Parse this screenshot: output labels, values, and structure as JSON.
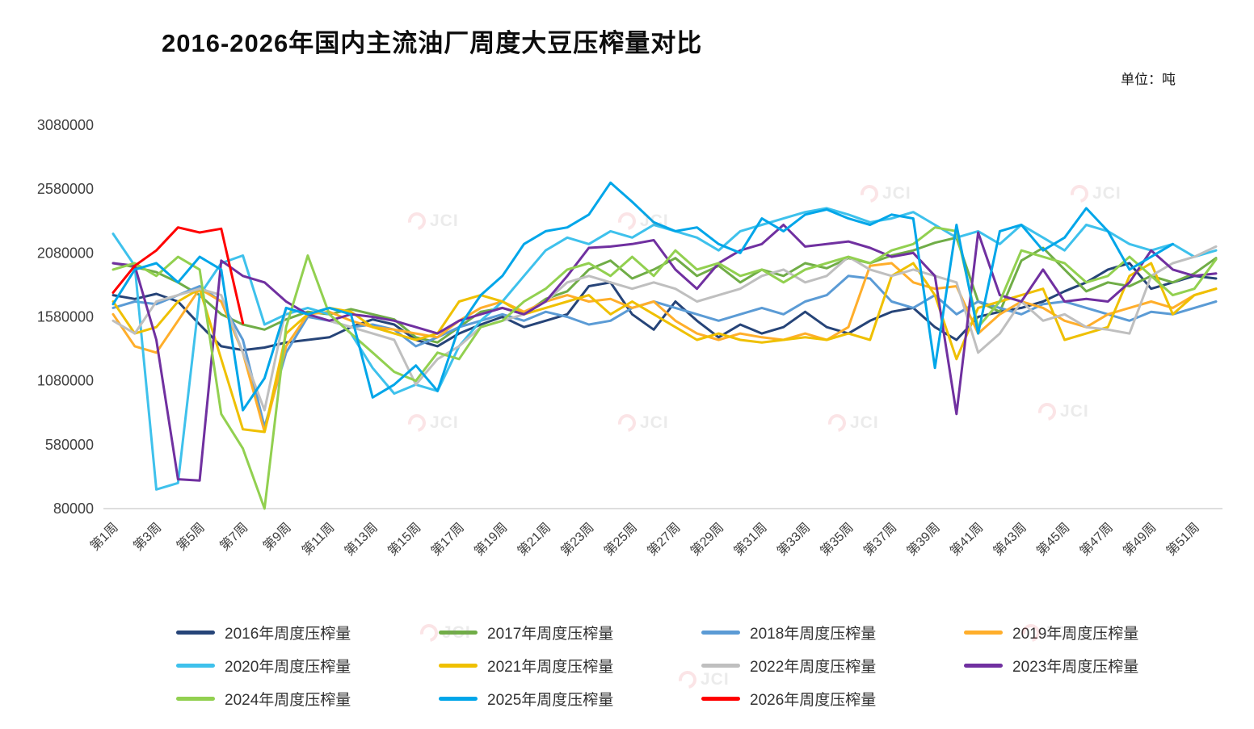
{
  "watermark": "JCI",
  "chart_data": {
    "type": "line",
    "title": "2016-2026年国内主流油厂周度大豆压榨量对比",
    "unit": "单位：吨",
    "xlabel": "",
    "ylabel": "",
    "weeks": 52,
    "x_tick_labels": [
      "第1周",
      "第3周",
      "第5周",
      "第7周",
      "第9周",
      "第11周",
      "第13周",
      "第15周",
      "第17周",
      "第19周",
      "第21周",
      "第23周",
      "第25周",
      "第27周",
      "第29周",
      "第31周",
      "第33周",
      "第35周",
      "第37周",
      "第39周",
      "第41周",
      "第43周",
      "第45周",
      "第47周",
      "第49周",
      "第51周"
    ],
    "ylim": [
      80000,
      3080000
    ],
    "y_ticks": [
      3080000,
      2580000,
      2080000,
      1580000,
      1080000,
      580000,
      80000
    ],
    "y_tick_labels": [
      "3080000",
      "2580000",
      "2080000",
      "1580000",
      "1080000",
      "580000",
      "80000"
    ],
    "grid": false,
    "legend_position": "bottom",
    "series": [
      {
        "name": "2016年周度压榨量",
        "color": "#264478",
        "values": [
          1750000,
          1720000,
          1760000,
          1700000,
          1520000,
          1350000,
          1320000,
          1340000,
          1380000,
          1400000,
          1420000,
          1500000,
          1560000,
          1520000,
          1400000,
          1350000,
          1450000,
          1520000,
          1580000,
          1500000,
          1550000,
          1600000,
          1820000,
          1850000,
          1600000,
          1480000,
          1700000,
          1550000,
          1420000,
          1520000,
          1450000,
          1500000,
          1620000,
          1500000,
          1450000,
          1550000,
          1620000,
          1650000,
          1500000,
          1400000,
          1580000,
          1620000,
          1650000,
          1700000,
          1780000,
          1850000,
          1950000,
          2000000,
          1800000,
          1850000,
          1900000,
          1880000
        ]
      },
      {
        "name": "2017年周度压榨量",
        "color": "#70AD47",
        "values": [
          2000000,
          1970000,
          1930000,
          1850000,
          1750000,
          1600000,
          1520000,
          1480000,
          1560000,
          1620000,
          1600000,
          1640000,
          1600000,
          1560000,
          1420000,
          1380000,
          1500000,
          1620000,
          1650000,
          1600000,
          1720000,
          1780000,
          1950000,
          2020000,
          1880000,
          1950000,
          2040000,
          1900000,
          1980000,
          1850000,
          1950000,
          1900000,
          2000000,
          1960000,
          2040000,
          2000000,
          2060000,
          2100000,
          2160000,
          2200000,
          1700000,
          1620000,
          2020000,
          2120000,
          1950000,
          1780000,
          1850000,
          1820000,
          1900000,
          1850000,
          1920000,
          2040000
        ]
      },
      {
        "name": "2018年周度压榨量",
        "color": "#5B9BD5",
        "values": [
          1650000,
          1700000,
          1680000,
          1750000,
          1820000,
          1700000,
          1400000,
          720000,
          1300000,
          1580000,
          1550000,
          1500000,
          1520000,
          1480000,
          1350000,
          1420000,
          1500000,
          1550000,
          1600000,
          1550000,
          1620000,
          1580000,
          1520000,
          1550000,
          1650000,
          1700000,
          1650000,
          1600000,
          1550000,
          1600000,
          1650000,
          1600000,
          1700000,
          1750000,
          1900000,
          1880000,
          1700000,
          1650000,
          1750000,
          1600000,
          1700000,
          1650000,
          1600000,
          1680000,
          1700000,
          1650000,
          1600000,
          1550000,
          1620000,
          1600000,
          1650000,
          1700000
        ]
      },
      {
        "name": "2019年周度压榨量",
        "color": "#FFAE2B",
        "values": [
          1600000,
          1350000,
          1300000,
          1550000,
          1800000,
          1700000,
          1300000,
          680000,
          1350000,
          1600000,
          1620000,
          1550000,
          1500000,
          1480000,
          1450000,
          1420000,
          1550000,
          1650000,
          1700000,
          1620000,
          1700000,
          1750000,
          1700000,
          1720000,
          1650000,
          1700000,
          1550000,
          1450000,
          1400000,
          1450000,
          1420000,
          1400000,
          1450000,
          1400000,
          1500000,
          1980000,
          2000000,
          1850000,
          1800000,
          1820000,
          1450000,
          1600000,
          1700000,
          1650000,
          1550000,
          1500000,
          1600000,
          1650000,
          1700000,
          1650000,
          1750000,
          1800000
        ]
      },
      {
        "name": "2020年周度压榨量",
        "color": "#3EC1EC",
        "values": [
          2230000,
          1980000,
          230000,
          280000,
          1750000,
          2000000,
          2060000,
          1520000,
          1600000,
          1650000,
          1600000,
          1450000,
          1180000,
          980000,
          1050000,
          1000000,
          1350000,
          1550000,
          1700000,
          1900000,
          2100000,
          2200000,
          2150000,
          2250000,
          2200000,
          2300000,
          2250000,
          2200000,
          2100000,
          2250000,
          2300000,
          2350000,
          2400000,
          2430000,
          2380000,
          2320000,
          2350000,
          2400000,
          2300000,
          2200000,
          2250000,
          2150000,
          2300000,
          2200000,
          2100000,
          2300000,
          2250000,
          2150000,
          2100000,
          2150000,
          2050000,
          2100000
        ]
      },
      {
        "name": "2021年周度压榨量",
        "color": "#EFC000",
        "values": [
          1700000,
          1450000,
          1500000,
          1700000,
          1800000,
          1250000,
          700000,
          680000,
          1450000,
          1600000,
          1650000,
          1620000,
          1500000,
          1450000,
          1400000,
          1450000,
          1700000,
          1750000,
          1700000,
          1600000,
          1650000,
          1700000,
          1750000,
          1600000,
          1700000,
          1600000,
          1500000,
          1400000,
          1450000,
          1400000,
          1380000,
          1400000,
          1420000,
          1400000,
          1450000,
          1400000,
          1900000,
          2000000,
          1750000,
          1250000,
          1650000,
          1700000,
          1750000,
          1800000,
          1400000,
          1450000,
          1500000,
          1900000,
          2000000,
          1600000,
          1750000,
          1800000
        ]
      },
      {
        "name": "2022年周度压榨量",
        "color": "#BFBFBF",
        "values": [
          1550000,
          1450000,
          1700000,
          1750000,
          1800000,
          1750000,
          1300000,
          850000,
          1650000,
          1600000,
          1550000,
          1500000,
          1450000,
          1400000,
          1050000,
          1250000,
          1350000,
          1500000,
          1550000,
          1600000,
          1700000,
          1850000,
          1900000,
          1850000,
          1800000,
          1850000,
          1800000,
          1700000,
          1750000,
          1800000,
          1900000,
          1950000,
          1850000,
          1900000,
          2050000,
          1950000,
          1900000,
          1950000,
          1900000,
          1850000,
          1300000,
          1450000,
          1700000,
          1550000,
          1600000,
          1500000,
          1480000,
          1450000,
          1900000,
          2000000,
          2050000,
          2130000
        ]
      },
      {
        "name": "2023年周度压榨量",
        "color": "#7030A0",
        "values": [
          2000000,
          1980000,
          1400000,
          310000,
          300000,
          2020000,
          1900000,
          1850000,
          1700000,
          1600000,
          1550000,
          1600000,
          1580000,
          1550000,
          1500000,
          1450000,
          1550000,
          1600000,
          1650000,
          1600000,
          1700000,
          1900000,
          2120000,
          2130000,
          2150000,
          2180000,
          1950000,
          1800000,
          2000000,
          2100000,
          2150000,
          2300000,
          2130000,
          2150000,
          2170000,
          2120000,
          2050000,
          2080000,
          1900000,
          820000,
          2240000,
          1750000,
          1700000,
          1950000,
          1700000,
          1720000,
          1700000,
          1850000,
          2100000,
          1950000,
          1900000,
          1920000
        ]
      },
      {
        "name": "2024年周度压榨量",
        "color": "#92D050",
        "values": [
          1950000,
          2000000,
          1900000,
          2050000,
          1950000,
          820000,
          550000,
          80000,
          1500000,
          2060000,
          1600000,
          1450000,
          1300000,
          1150000,
          1080000,
          1300000,
          1250000,
          1500000,
          1550000,
          1700000,
          1800000,
          1950000,
          2000000,
          1900000,
          2050000,
          1900000,
          2100000,
          1950000,
          2000000,
          1900000,
          1950000,
          1850000,
          1950000,
          2000000,
          2050000,
          2000000,
          2100000,
          2150000,
          2280000,
          2250000,
          1500000,
          1700000,
          2100000,
          2050000,
          2000000,
          1850000,
          1900000,
          2050000,
          1900000,
          1750000,
          1800000,
          2030000
        ]
      },
      {
        "name": "2025年周度压榨量",
        "color": "#00A6E9",
        "values": [
          1680000,
          1950000,
          2000000,
          1850000,
          2050000,
          1950000,
          850000,
          1100000,
          1650000,
          1600000,
          1650000,
          1600000,
          950000,
          1050000,
          1200000,
          1000000,
          1500000,
          1750000,
          1900000,
          2150000,
          2250000,
          2280000,
          2380000,
          2630000,
          2480000,
          2320000,
          2250000,
          2280000,
          2150000,
          2080000,
          2350000,
          2250000,
          2380000,
          2420000,
          2350000,
          2300000,
          2380000,
          2350000,
          1180000,
          2300000,
          1450000,
          2250000,
          2300000,
          2100000,
          2200000,
          2430000,
          2250000,
          1950000,
          2050000,
          2150000
        ]
      },
      {
        "name": "2026年周度压榨量",
        "color": "#FF0000",
        "values": [
          1770000,
          1980000,
          2100000,
          2280000,
          2240000,
          2270000,
          1530000
        ]
      }
    ]
  }
}
